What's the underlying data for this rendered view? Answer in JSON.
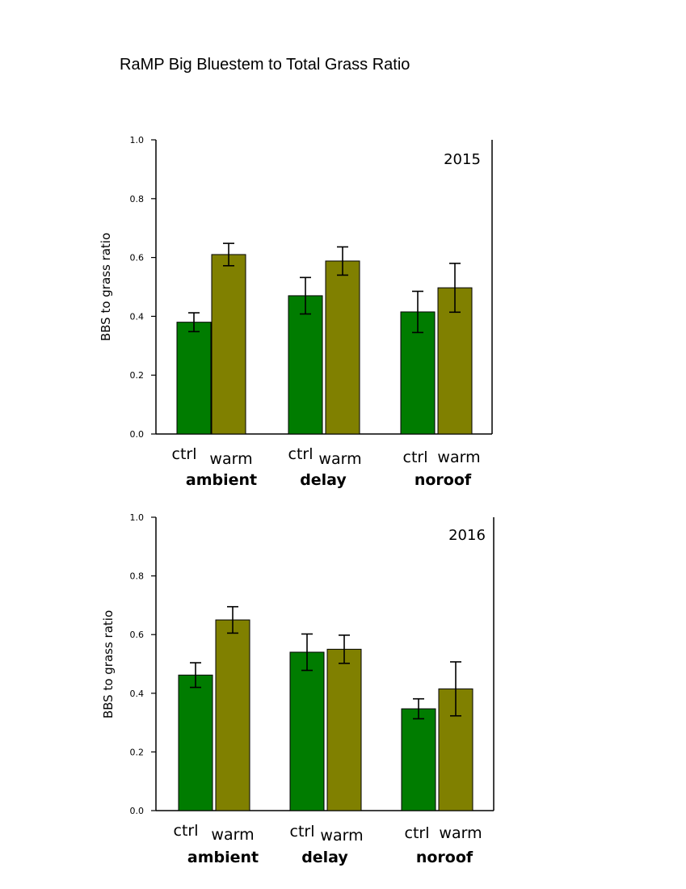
{
  "title": "RaMP Big Bluestem to Total Grass Ratio",
  "colors": {
    "ctrl": "#007c00",
    "warm": "#808000",
    "axis": "#000000"
  },
  "chart_data": [
    {
      "type": "bar",
      "panel_label": "2015",
      "ylabel": "BBS to grass ratio",
      "ylim": [
        0,
        1.0
      ],
      "yticks": [
        "0.0",
        "0.2",
        "0.4",
        "0.6",
        "0.8",
        "1.0"
      ],
      "groups": [
        "ambient",
        "delay",
        "noroof"
      ],
      "sub_labels": [
        "ctrl",
        "warm"
      ],
      "series": [
        {
          "name": "ctrl",
          "values": [
            0.38,
            0.47,
            0.415
          ],
          "errors": [
            0.032,
            0.062,
            0.07
          ]
        },
        {
          "name": "warm",
          "values": [
            0.61,
            0.588,
            0.497
          ],
          "errors": [
            0.038,
            0.048,
            0.083
          ]
        }
      ]
    },
    {
      "type": "bar",
      "panel_label": "2016",
      "ylabel": "BBS to grass ratio",
      "ylim": [
        0,
        1.0
      ],
      "yticks": [
        "0.0",
        "0.2",
        "0.4",
        "0.6",
        "0.8",
        "1.0"
      ],
      "groups": [
        "ambient",
        "delay",
        "noroof"
      ],
      "sub_labels": [
        "ctrl",
        "warm"
      ],
      "series": [
        {
          "name": "ctrl",
          "values": [
            0.462,
            0.54,
            0.347
          ],
          "errors": [
            0.042,
            0.062,
            0.034
          ]
        },
        {
          "name": "warm",
          "values": [
            0.65,
            0.55,
            0.415
          ],
          "errors": [
            0.045,
            0.048,
            0.092
          ]
        }
      ]
    }
  ]
}
